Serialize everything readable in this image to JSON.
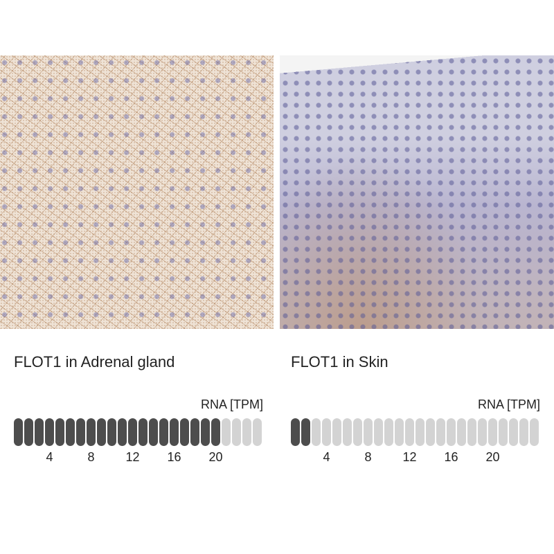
{
  "panels": [
    {
      "title": "FLOT1 in Adrenal gland",
      "rna_label": "RNA [TPM]",
      "filled": 20,
      "total": 24,
      "ticks": [
        "4",
        "8",
        "12",
        "16",
        "20"
      ]
    },
    {
      "title": "FLOT1 in Skin",
      "rna_label": "RNA [TPM]",
      "filled": 2,
      "total": 24,
      "ticks": [
        "4",
        "8",
        "12",
        "16",
        "20"
      ]
    }
  ],
  "colors": {
    "filled": "#4d4d4d",
    "empty": "#d3d3d3"
  }
}
